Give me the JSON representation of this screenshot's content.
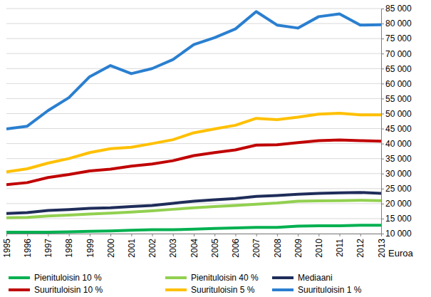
{
  "chart_data": {
    "type": "line",
    "ylabel": "Euroa",
    "x": [
      1995,
      1996,
      1997,
      1998,
      1999,
      2000,
      2001,
      2002,
      2003,
      2004,
      2005,
      2006,
      2007,
      2008,
      2009,
      2010,
      2011,
      2012,
      2013
    ],
    "xlim": [
      1995,
      2013
    ],
    "xticks": [
      1995,
      1996,
      1997,
      1998,
      1999,
      2000,
      2001,
      2002,
      2003,
      2004,
      2005,
      2006,
      2007,
      2008,
      2009,
      2010,
      2011,
      2012,
      2013
    ],
    "ylim": [
      10000,
      85000
    ],
    "yticks": [
      {
        "value": 10000,
        "label": "10 000"
      },
      {
        "value": 15000,
        "label": "15 000"
      },
      {
        "value": 20000,
        "label": "20 000"
      },
      {
        "value": 25000,
        "label": "25 000"
      },
      {
        "value": 30000,
        "label": "30 000"
      },
      {
        "value": 35000,
        "label": "35 000"
      },
      {
        "value": 40000,
        "label": "40 000"
      },
      {
        "value": 45000,
        "label": "45 000"
      },
      {
        "value": 50000,
        "label": "50 000"
      },
      {
        "value": 55000,
        "label": "55 000"
      },
      {
        "value": 60000,
        "label": "60 000"
      },
      {
        "value": 65000,
        "label": "65 000"
      },
      {
        "value": 70000,
        "label": "70 000"
      },
      {
        "value": 75000,
        "label": "75 000"
      },
      {
        "value": 80000,
        "label": "80 000"
      },
      {
        "value": 85000,
        "label": "85 000"
      }
    ],
    "grid": true,
    "legend": "bottom",
    "series": [
      {
        "name": "Pienituloisin 10 %",
        "color": "#00b050",
        "values": [
          10500,
          10500,
          10500,
          10600,
          10800,
          10900,
          11100,
          11300,
          11300,
          11500,
          11700,
          11900,
          12100,
          12100,
          12500,
          12600,
          12600,
          12800,
          12800
        ]
      },
      {
        "name": "Pienituloisin 40 %",
        "color": "#92d050",
        "values": [
          15300,
          15400,
          15900,
          16200,
          16500,
          16800,
          17200,
          17600,
          18100,
          18600,
          19000,
          19400,
          19800,
          20200,
          20800,
          20900,
          21000,
          21100,
          21000
        ]
      },
      {
        "name": "Mediaani",
        "color": "#1f2d5a",
        "values": [
          16700,
          17000,
          17700,
          18000,
          18400,
          18600,
          19000,
          19400,
          20100,
          20800,
          21300,
          21700,
          22400,
          22700,
          23100,
          23400,
          23600,
          23700,
          23400
        ]
      },
      {
        "name": "Suurituloisin 10 %",
        "color": "#c00000",
        "values": [
          26300,
          27000,
          28700,
          29700,
          30900,
          31500,
          32500,
          33200,
          34300,
          36000,
          37000,
          37900,
          39500,
          39600,
          40300,
          41000,
          41200,
          41000,
          40800
        ]
      },
      {
        "name": "Suurituloisin 5 %",
        "color": "#ffc000",
        "values": [
          30600,
          31600,
          33500,
          35000,
          37000,
          38300,
          38800,
          40000,
          41300,
          43600,
          44900,
          46100,
          48400,
          48000,
          48800,
          49800,
          50100,
          49600,
          49600
        ]
      },
      {
        "name": "Suurituloisin 1 %",
        "color": "#2a7fd0",
        "values": [
          44900,
          45800,
          51000,
          55300,
          62300,
          66000,
          63300,
          65000,
          68000,
          73000,
          75300,
          78200,
          84000,
          79500,
          78500,
          82300,
          83200,
          79500,
          79600
        ]
      }
    ]
  }
}
